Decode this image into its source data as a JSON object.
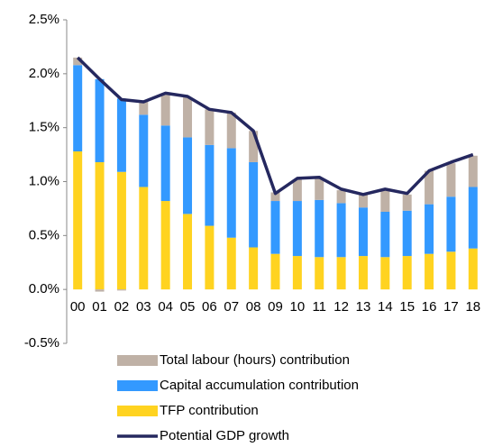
{
  "chart_data": {
    "type": "bar",
    "stacked": true,
    "categories": [
      "00",
      "01",
      "02",
      "03",
      "04",
      "05",
      "06",
      "07",
      "08",
      "09",
      "10",
      "11",
      "12",
      "13",
      "14",
      "15",
      "16",
      "17",
      "18"
    ],
    "series": [
      {
        "name": "TFP contribution",
        "color": "#ffd320",
        "values": [
          1.28,
          1.18,
          1.09,
          0.95,
          0.82,
          0.7,
          0.59,
          0.48,
          0.39,
          0.33,
          0.31,
          0.3,
          0.3,
          0.31,
          0.3,
          0.31,
          0.33,
          0.35,
          0.38
        ]
      },
      {
        "name": "Capital accumulation contribution",
        "color": "#3399ff",
        "values": [
          0.8,
          0.77,
          0.68,
          0.67,
          0.7,
          0.71,
          0.75,
          0.83,
          0.79,
          0.49,
          0.51,
          0.53,
          0.5,
          0.45,
          0.42,
          0.42,
          0.46,
          0.51,
          0.57
        ]
      },
      {
        "name": "Total labour (hours) contribution",
        "color": "#bfb1a6",
        "values": [
          0.07,
          -0.02,
          -0.01,
          0.12,
          0.3,
          0.37,
          0.33,
          0.33,
          0.29,
          0.08,
          0.2,
          0.2,
          0.12,
          0.12,
          0.2,
          0.15,
          0.31,
          0.31,
          0.29
        ]
      },
      {
        "name": "Potential GDP growth",
        "color": "#25285f",
        "type": "line",
        "values": [
          2.15,
          1.95,
          1.76,
          1.74,
          1.82,
          1.79,
          1.67,
          1.64,
          1.47,
          0.89,
          1.03,
          1.04,
          0.93,
          0.88,
          0.93,
          0.89,
          1.1,
          1.18,
          1.25
        ]
      }
    ],
    "legend_order": [
      2,
      1,
      0,
      3
    ],
    "ylim": [
      -0.5,
      2.5
    ],
    "yticks": [
      {
        "value": -0.5,
        "label": "-0.5%"
      },
      {
        "value": 0,
        "label": "0.0%"
      },
      {
        "value": 0.5,
        "label": "0.5%"
      },
      {
        "value": 1,
        "label": "1.0%"
      },
      {
        "value": 1.5,
        "label": "1.5%"
      },
      {
        "value": 2,
        "label": "2.0%"
      },
      {
        "value": 2.5,
        "label": "2.5%"
      }
    ],
    "grid": false
  }
}
